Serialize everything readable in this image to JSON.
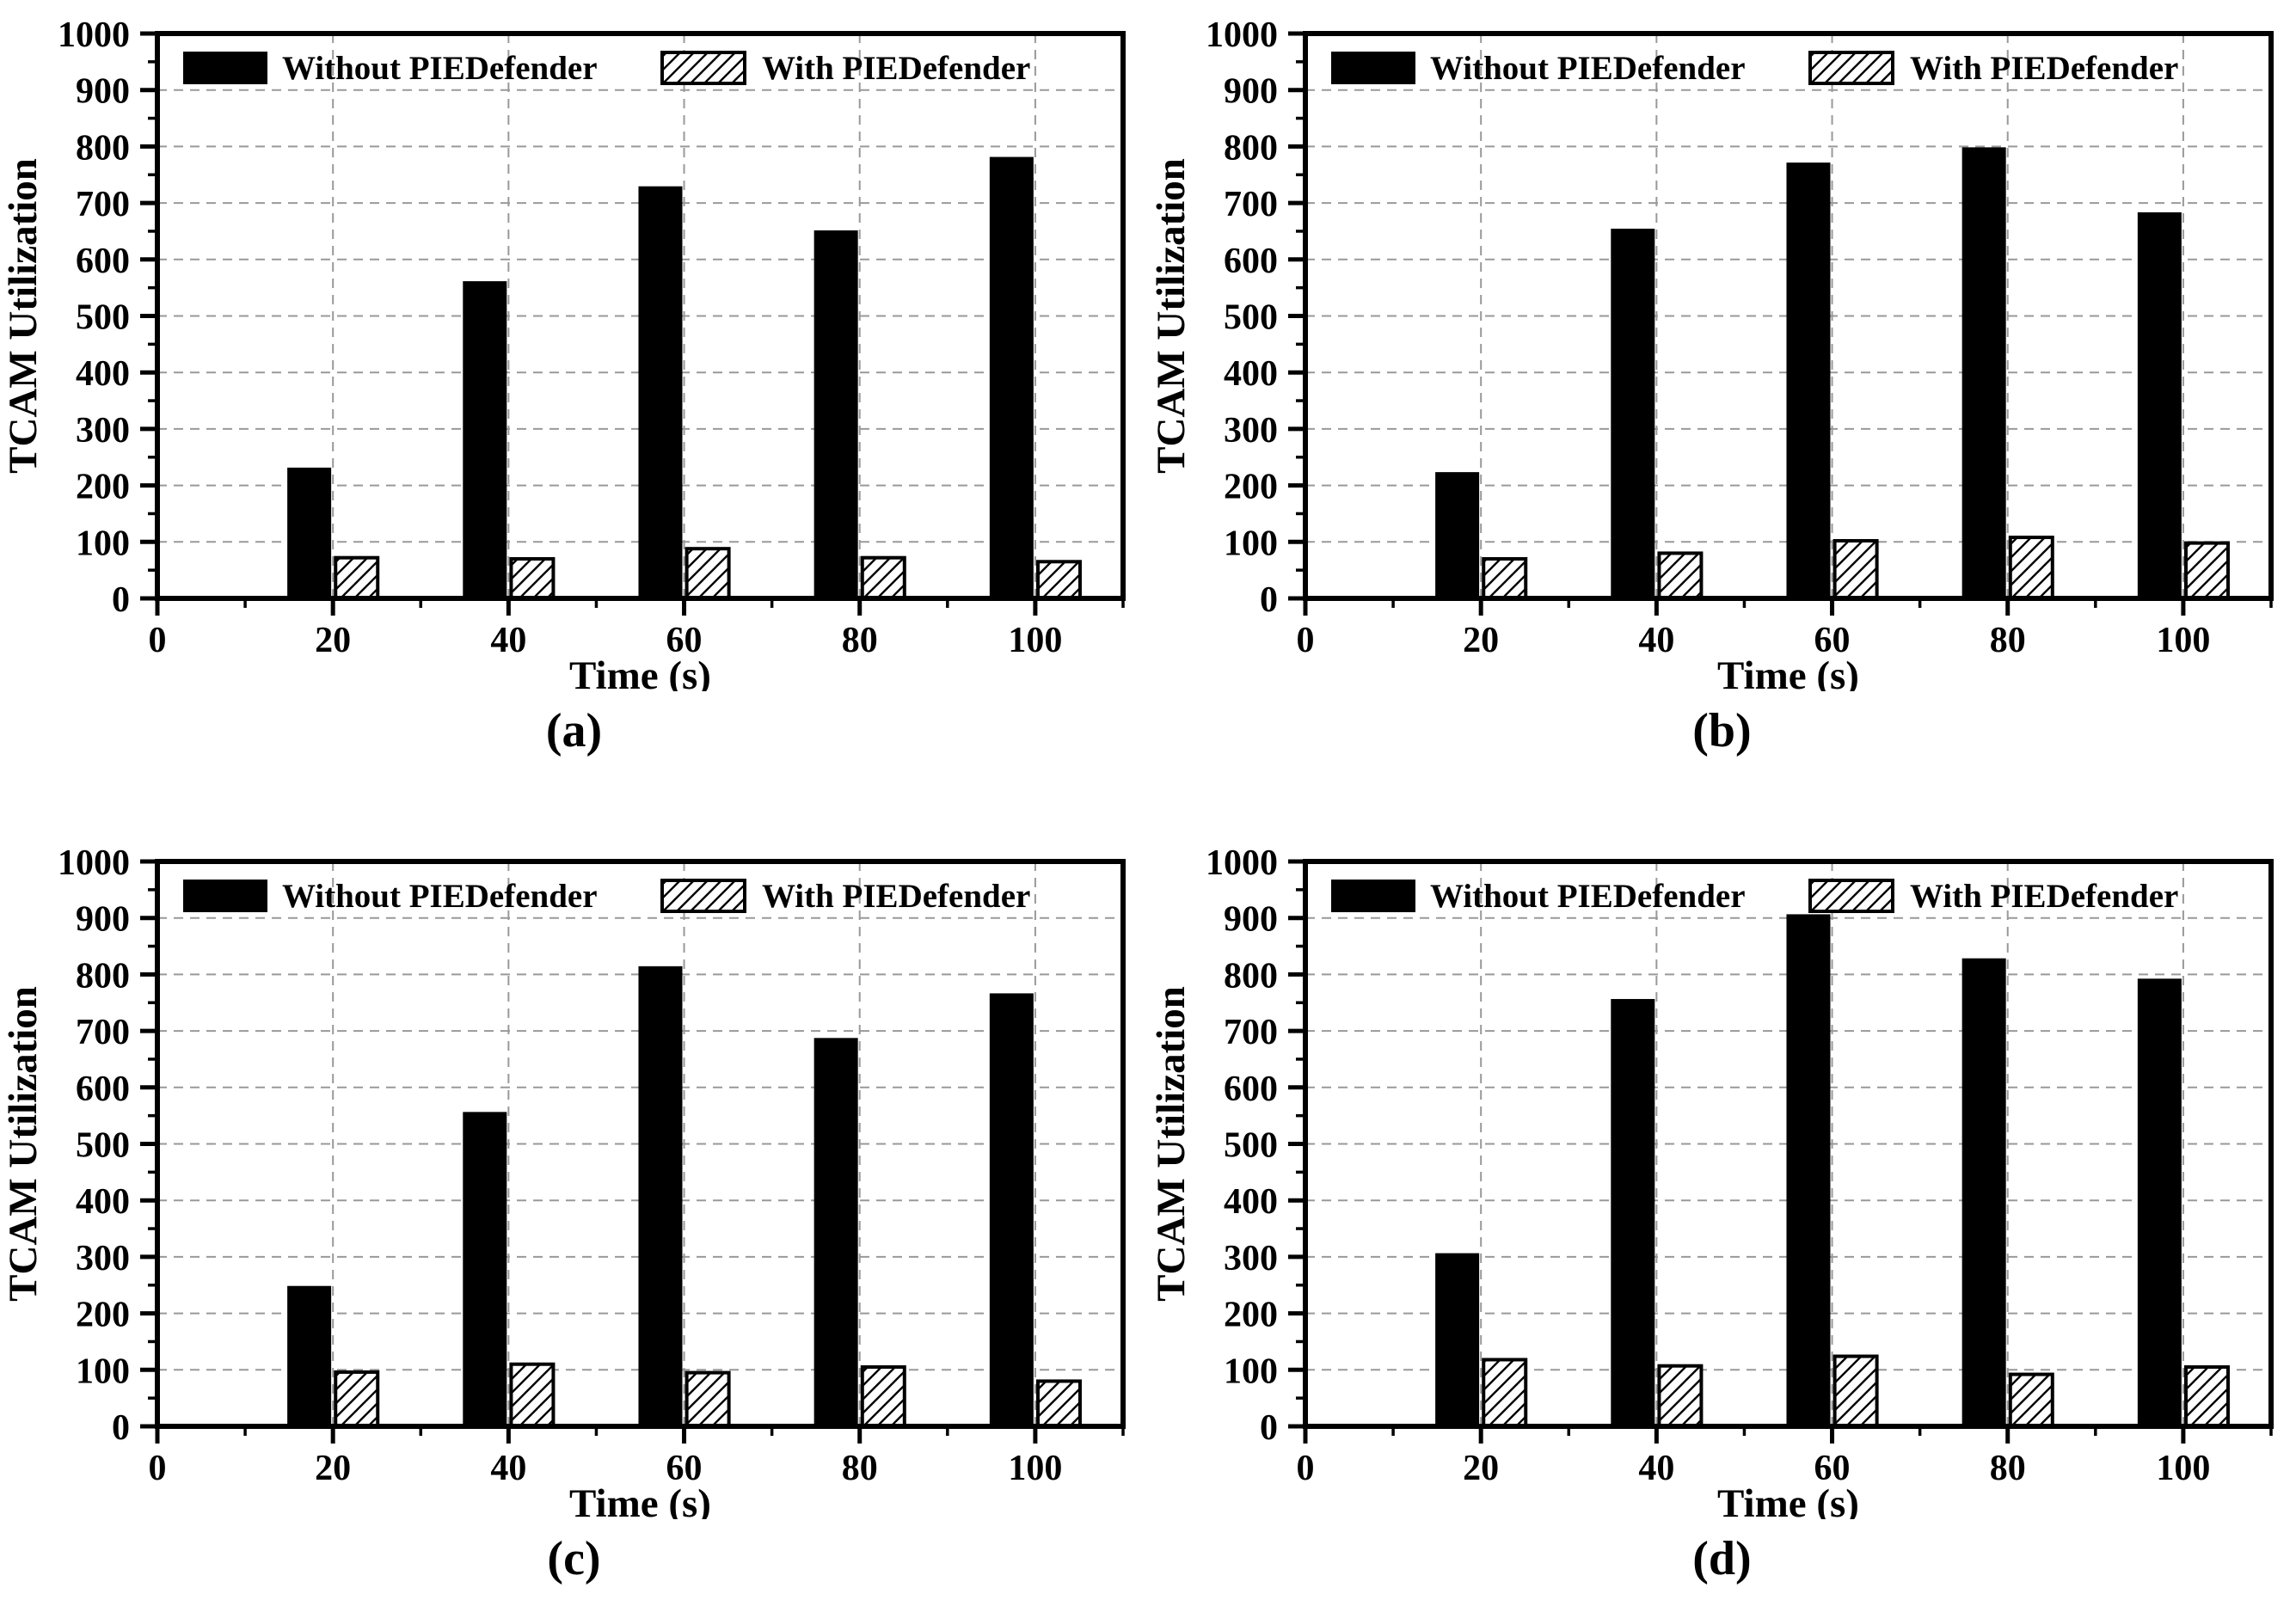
{
  "figure": {
    "background": "#ffffff",
    "xlabel": "Time (s)",
    "ylabel": "TCAM Utilization",
    "legend_labels": [
      "Without PIEDefender",
      "With PIEDefender"
    ],
    "colors": {
      "solid_bar_fill": "#000000",
      "hatched_bar_fill": "#ffffff",
      "hatched_bar_stroke": "#000000",
      "grid_line": "#999999",
      "axis_frame": "#000000",
      "text": "#000000"
    }
  },
  "chart_data": [
    {
      "panel": "a",
      "caption": "(a)",
      "type": "bar",
      "xlabel": "Time (s)",
      "ylabel": "TCAM Utilization",
      "x": [
        20,
        40,
        60,
        80,
        100
      ],
      "series": [
        {
          "name": "Without PIEDefender",
          "style": "solid-black",
          "values": [
            230,
            560,
            728,
            650,
            780
          ]
        },
        {
          "name": "With PIEDefender",
          "style": "hatched",
          "values": [
            72,
            70,
            88,
            72,
            65
          ]
        }
      ],
      "xlim": [
        0,
        110
      ],
      "ylim": [
        0,
        1000
      ],
      "xticks": [
        0,
        20,
        40,
        60,
        80,
        100
      ],
      "yticks": [
        0,
        100,
        200,
        300,
        400,
        500,
        600,
        700,
        800,
        900,
        1000
      ],
      "x_minor_ticks": [
        10,
        30,
        50,
        70,
        90,
        110
      ],
      "y_minor_step": 50,
      "grid": "dashed",
      "legend_position": "top-inside"
    },
    {
      "panel": "b",
      "caption": "(b)",
      "type": "bar",
      "xlabel": "Time (s)",
      "ylabel": "TCAM Utilization",
      "x": [
        20,
        40,
        60,
        80,
        100
      ],
      "series": [
        {
          "name": "Without PIEDefender",
          "style": "solid-black",
          "values": [
            222,
            653,
            770,
            797,
            682
          ]
        },
        {
          "name": "With PIEDefender",
          "style": "hatched",
          "values": [
            70,
            80,
            102,
            108,
            98
          ]
        }
      ],
      "xlim": [
        0,
        110
      ],
      "ylim": [
        0,
        1000
      ],
      "xticks": [
        0,
        20,
        40,
        60,
        80,
        100
      ],
      "yticks": [
        0,
        100,
        200,
        300,
        400,
        500,
        600,
        700,
        800,
        900,
        1000
      ],
      "x_minor_ticks": [
        10,
        30,
        50,
        70,
        90,
        110
      ],
      "y_minor_step": 50,
      "grid": "dashed",
      "legend_position": "top-inside"
    },
    {
      "panel": "c",
      "caption": "(c)",
      "type": "bar",
      "xlabel": "Time (s)",
      "ylabel": "TCAM Utilization",
      "x": [
        20,
        40,
        60,
        80,
        100
      ],
      "series": [
        {
          "name": "Without PIEDefender",
          "style": "solid-black",
          "values": [
            247,
            555,
            813,
            686,
            765
          ]
        },
        {
          "name": "With PIEDefender",
          "style": "hatched",
          "values": [
            96,
            110,
            95,
            105,
            80
          ]
        }
      ],
      "xlim": [
        0,
        110
      ],
      "ylim": [
        0,
        1000
      ],
      "xticks": [
        0,
        20,
        40,
        60,
        80,
        100
      ],
      "yticks": [
        0,
        100,
        200,
        300,
        400,
        500,
        600,
        700,
        800,
        900,
        1000
      ],
      "x_minor_ticks": [
        10,
        30,
        50,
        70,
        90,
        110
      ],
      "y_minor_step": 50,
      "grid": "dashed",
      "legend_position": "top-inside"
    },
    {
      "panel": "d",
      "caption": "(d)",
      "type": "bar",
      "xlabel": "Time (s)",
      "ylabel": "TCAM Utilization",
      "x": [
        20,
        40,
        60,
        80,
        100
      ],
      "series": [
        {
          "name": "Without PIEDefender",
          "style": "solid-black",
          "values": [
            305,
            755,
            905,
            827,
            791
          ]
        },
        {
          "name": "With PIEDefender",
          "style": "hatched",
          "values": [
            118,
            107,
            124,
            92,
            105
          ]
        }
      ],
      "xlim": [
        0,
        110
      ],
      "ylim": [
        0,
        1000
      ],
      "xticks": [
        0,
        20,
        40,
        60,
        80,
        100
      ],
      "yticks": [
        0,
        100,
        200,
        300,
        400,
        500,
        600,
        700,
        800,
        900,
        1000
      ],
      "x_minor_ticks": [
        10,
        30,
        50,
        70,
        90,
        110
      ],
      "y_minor_step": 50,
      "grid": "dashed",
      "legend_position": "top-inside"
    }
  ]
}
